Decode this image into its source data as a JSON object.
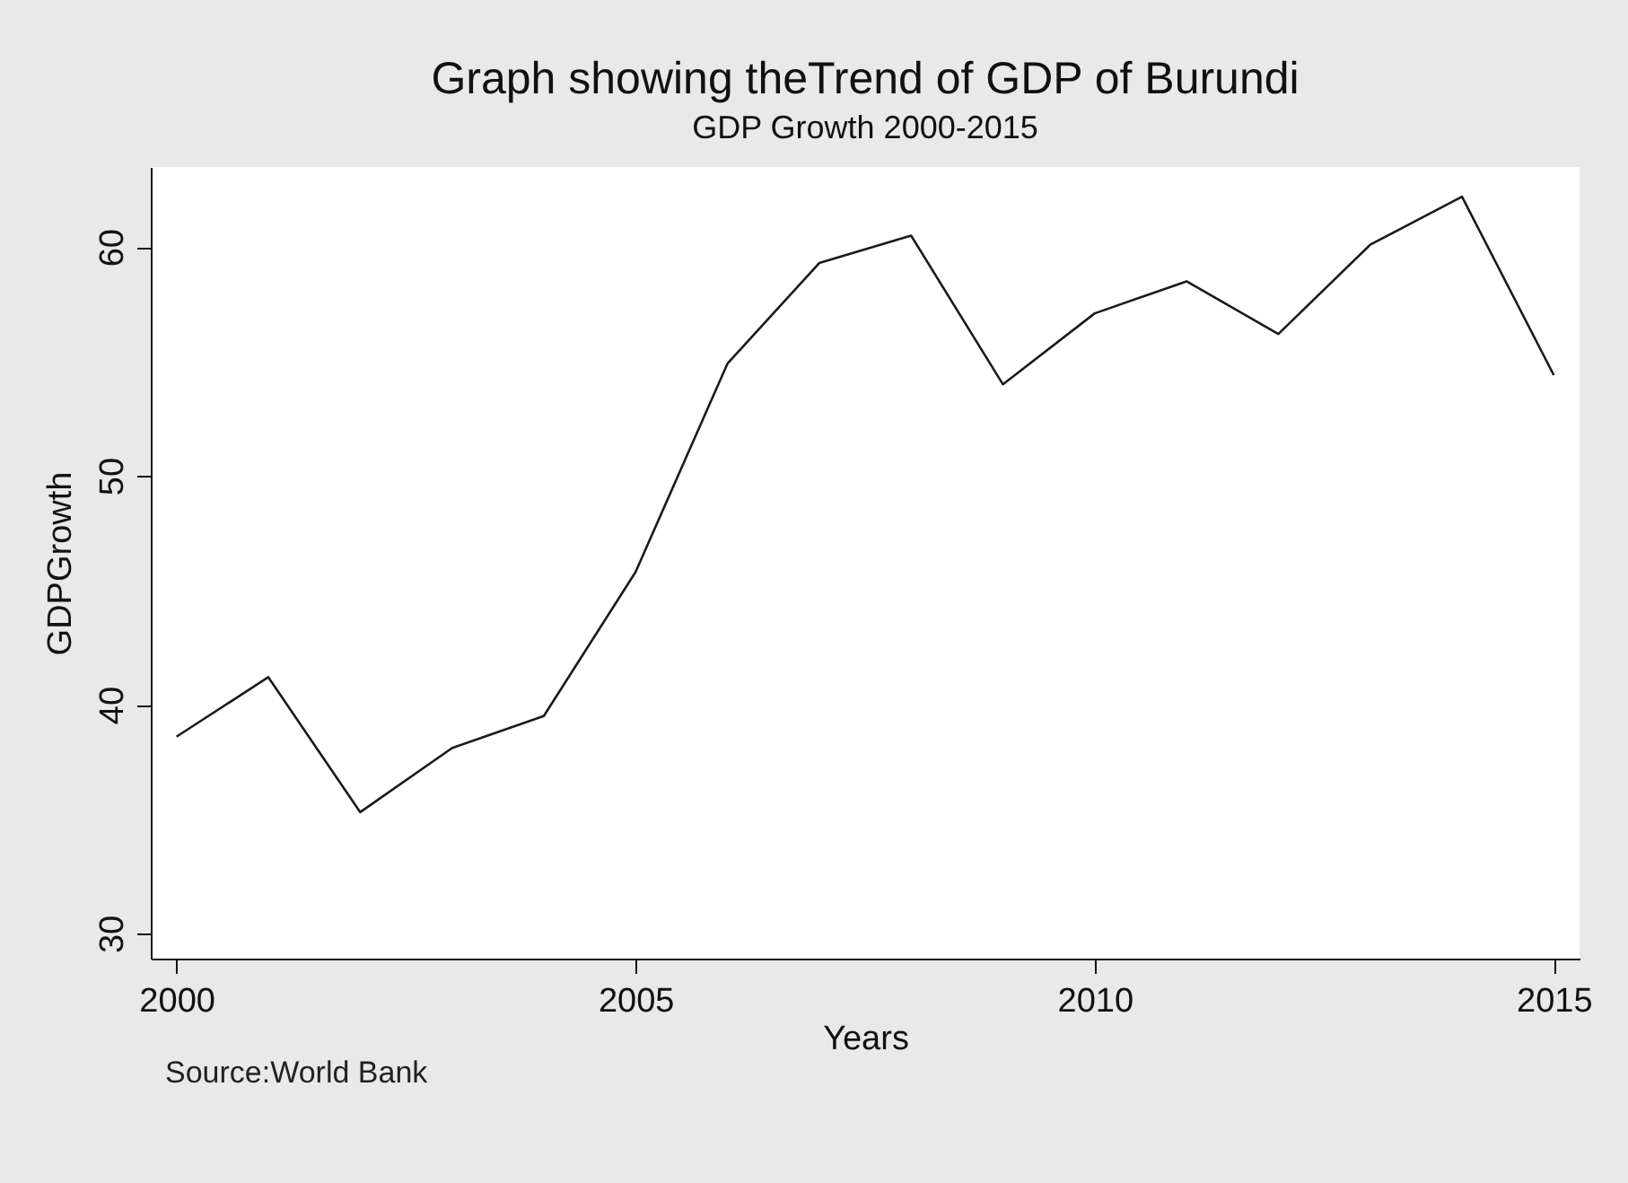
{
  "chart_data": {
    "type": "line",
    "title": "Graph showing theTrend of GDP of Burundi",
    "subtitle": "GDP Growth 2000-2015",
    "xlabel": "Years",
    "ylabel": "GDPGrowth",
    "annotations": [
      "Source:World Bank"
    ],
    "x": [
      2000,
      2001,
      2002,
      2003,
      2004,
      2005,
      2006,
      2007,
      2008,
      2009,
      2010,
      2011,
      2012,
      2013,
      2014,
      2015
    ],
    "series": [
      {
        "color": "#1a1a1a",
        "values": [
          38.6,
          41.2,
          35.3,
          38.1,
          39.5,
          45.8,
          54.9,
          59.3,
          60.5,
          54.0,
          57.1,
          58.5,
          56.2,
          60.1,
          62.2,
          54.4
        ]
      }
    ],
    "xlim": [
      1999.72,
      2015.28
    ],
    "xticks": [
      2000,
      2005,
      2010,
      2015
    ],
    "ylim": [
      28.9,
      63.5
    ],
    "yticks": [
      30,
      40,
      50,
      60
    ],
    "grid": false,
    "marker": "none",
    "line_style": "solid"
  }
}
